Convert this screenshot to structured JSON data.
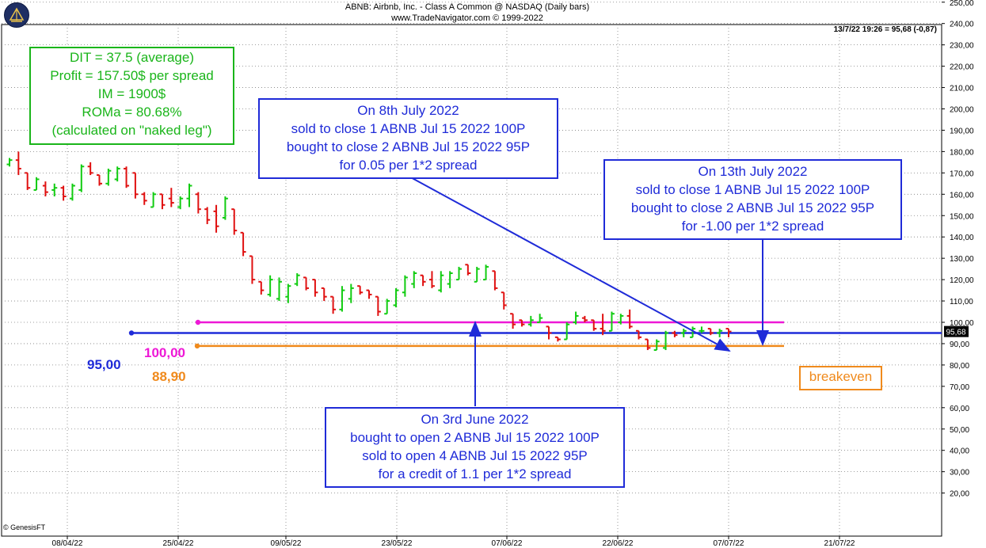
{
  "header": {
    "title": "ABNB:  Airbnb, Inc. - Class A Common @ NASDAQ  (Daily bars)",
    "subtitle": "www.TradeNavigator.com © 1999-2022"
  },
  "quote": "13/7/22 19:26 = 95,68 (-0,87)",
  "copyright": "© GenesisFT",
  "stats_box": [
    "DIT = 37.5 (average)",
    "Profit = 157.50$ per spread",
    "IM = 1900$",
    "ROMa = 80.68%",
    "(calculated on \"naked leg\")"
  ],
  "note_open": [
    "On 3rd June 2022",
    "bought to open 2 ABNB Jul 15 2022 100P",
    "sold to open 4 ABNB Jul 15 2022 95P",
    "for a credit of 1.1 per 1*2 spread"
  ],
  "note_close1": [
    "On 8th July 2022",
    "sold to close 1 ABNB Jul 15 2022 100P",
    "bought to close 2 ABNB Jul 15 2022 95P",
    "for 0.05 per 1*2 spread"
  ],
  "note_close2": [
    "On 13th July 2022",
    "sold to close 1 ABNB Jul 15 2022 100P",
    "bought to close 2 ABNB Jul 15 2022 95P",
    "for -1.00 per 1*2 spread"
  ],
  "levels": {
    "upper": {
      "label": "100,00",
      "value": 100,
      "color": "#ee18d6"
    },
    "strike": {
      "label": "95,00",
      "value": 95,
      "color": "#1f2bd8"
    },
    "breakeven": {
      "label": "88,90",
      "value": 88.9,
      "color": "#f08a1c"
    }
  },
  "breakeven_label": "breakeven",
  "colors": {
    "up": "#11cc11",
    "down": "#e01010",
    "grid": "#7f7f7f"
  },
  "chart_data": {
    "type": "ohlc",
    "title": "ABNB:  Airbnb, Inc. - Class A Common @ NASDAQ  (Daily bars)",
    "ylim": [
      17,
      252
    ],
    "y_ticks": [
      "20,00",
      "30,00",
      "40,00",
      "50,00",
      "60,00",
      "70,00",
      "80,00",
      "90,00",
      "100,00",
      "110,00",
      "120,00",
      "130,00",
      "140,00",
      "150,00",
      "160,00",
      "170,00",
      "180,00",
      "190,00",
      "200,00",
      "210,00",
      "220,00",
      "230,00",
      "240,00",
      "250,00"
    ],
    "x_ticks": [
      "08/04/22",
      "25/04/22",
      "09/05/22",
      "23/05/22",
      "07/06/22",
      "22/06/22",
      "07/07/22",
      "21/07/22"
    ],
    "last_price_label": "95,68",
    "bars": [
      {
        "o": 174,
        "h": 177,
        "l": 173,
        "c": 176
      },
      {
        "o": 176,
        "h": 180,
        "l": 169,
        "c": 172
      },
      {
        "o": 170,
        "h": 170,
        "l": 162,
        "c": 163
      },
      {
        "o": 162,
        "h": 168,
        "l": 162,
        "c": 167
      },
      {
        "o": 164,
        "h": 166,
        "l": 159,
        "c": 161
      },
      {
        "o": 162,
        "h": 165,
        "l": 159,
        "c": 163
      },
      {
        "o": 163,
        "h": 164,
        "l": 157,
        "c": 159
      },
      {
        "o": 158,
        "h": 165,
        "l": 157,
        "c": 164
      },
      {
        "o": 162,
        "h": 174,
        "l": 161,
        "c": 173
      },
      {
        "o": 173,
        "h": 175,
        "l": 169,
        "c": 170
      },
      {
        "o": 169,
        "h": 169,
        "l": 164,
        "c": 165
      },
      {
        "o": 165,
        "h": 172,
        "l": 164,
        "c": 171
      },
      {
        "o": 167,
        "h": 173,
        "l": 166,
        "c": 172
      },
      {
        "o": 172,
        "h": 173,
        "l": 163,
        "c": 164
      },
      {
        "o": 170,
        "h": 170,
        "l": 158,
        "c": 160
      },
      {
        "o": 160,
        "h": 161,
        "l": 155,
        "c": 157
      },
      {
        "o": 154,
        "h": 161,
        "l": 154,
        "c": 160
      },
      {
        "o": 160,
        "h": 160,
        "l": 153,
        "c": 155
      },
      {
        "o": 158,
        "h": 163,
        "l": 154,
        "c": 156
      },
      {
        "o": 154,
        "h": 159,
        "l": 153,
        "c": 158
      },
      {
        "o": 158,
        "h": 165,
        "l": 154,
        "c": 164
      },
      {
        "o": 160,
        "h": 161,
        "l": 151,
        "c": 153
      },
      {
        "o": 153,
        "h": 154,
        "l": 146,
        "c": 148
      },
      {
        "o": 152,
        "h": 155,
        "l": 142,
        "c": 145
      },
      {
        "o": 149,
        "h": 159,
        "l": 148,
        "c": 158
      },
      {
        "o": 153,
        "h": 153,
        "l": 141,
        "c": 143
      },
      {
        "o": 142,
        "h": 142,
        "l": 131,
        "c": 133
      },
      {
        "o": 131,
        "h": 131,
        "l": 118,
        "c": 120
      },
      {
        "o": 119,
        "h": 119,
        "l": 113,
        "c": 115
      },
      {
        "o": 113,
        "h": 122,
        "l": 112,
        "c": 120
      },
      {
        "o": 111,
        "h": 121,
        "l": 110,
        "c": 119
      },
      {
        "o": 112,
        "h": 118,
        "l": 109,
        "c": 117
      },
      {
        "o": 118,
        "h": 123,
        "l": 117,
        "c": 122
      },
      {
        "o": 121,
        "h": 121,
        "l": 115,
        "c": 116
      },
      {
        "o": 120,
        "h": 120,
        "l": 112,
        "c": 114
      },
      {
        "o": 116,
        "h": 116,
        "l": 110,
        "c": 112
      },
      {
        "o": 112,
        "h": 112,
        "l": 104,
        "c": 106
      },
      {
        "o": 106,
        "h": 117,
        "l": 105,
        "c": 115
      },
      {
        "o": 111,
        "h": 118,
        "l": 109,
        "c": 116
      },
      {
        "o": 117,
        "h": 117,
        "l": 113,
        "c": 114
      },
      {
        "o": 115,
        "h": 115,
        "l": 111,
        "c": 113
      },
      {
        "o": 112,
        "h": 112,
        "l": 103,
        "c": 105
      },
      {
        "o": 104,
        "h": 111,
        "l": 104,
        "c": 110
      },
      {
        "o": 108,
        "h": 116,
        "l": 107,
        "c": 115
      },
      {
        "o": 114,
        "h": 122,
        "l": 112,
        "c": 121
      },
      {
        "o": 118,
        "h": 124,
        "l": 116,
        "c": 123
      },
      {
        "o": 122,
        "h": 122,
        "l": 117,
        "c": 119
      },
      {
        "o": 120,
        "h": 124,
        "l": 116,
        "c": 117
      },
      {
        "o": 115,
        "h": 124,
        "l": 114,
        "c": 122
      },
      {
        "o": 118,
        "h": 124,
        "l": 116,
        "c": 123
      },
      {
        "o": 120,
        "h": 126,
        "l": 120,
        "c": 125
      },
      {
        "o": 127,
        "h": 127,
        "l": 122,
        "c": 123
      },
      {
        "o": 119,
        "h": 126,
        "l": 119,
        "c": 125
      },
      {
        "o": 120,
        "h": 127,
        "l": 120,
        "c": 126
      },
      {
        "o": 124,
        "h": 124,
        "l": 115,
        "c": 116
      },
      {
        "o": 114,
        "h": 114,
        "l": 106,
        "c": 108
      },
      {
        "o": 104,
        "h": 104,
        "l": 97,
        "c": 99
      },
      {
        "o": 101,
        "h": 101,
        "l": 98,
        "c": 99
      },
      {
        "o": 99,
        "h": 103,
        "l": 98,
        "c": 101
      },
      {
        "o": 100,
        "h": 104,
        "l": 100,
        "c": 102
      },
      {
        "o": 98,
        "h": 98,
        "l": 92,
        "c": 95
      },
      {
        "o": 93,
        "h": 93,
        "l": 91,
        "c": 92
      },
      {
        "o": 92,
        "h": 100,
        "l": 92,
        "c": 99
      },
      {
        "o": 100,
        "h": 105,
        "l": 99,
        "c": 103
      },
      {
        "o": 102,
        "h": 103,
        "l": 100,
        "c": 101
      },
      {
        "o": 101,
        "h": 101,
        "l": 96,
        "c": 97
      },
      {
        "o": 97,
        "h": 104,
        "l": 94,
        "c": 96
      },
      {
        "o": 96,
        "h": 105,
        "l": 96,
        "c": 104
      },
      {
        "o": 100,
        "h": 104,
        "l": 99,
        "c": 103
      },
      {
        "o": 103,
        "h": 106,
        "l": 97,
        "c": 98
      },
      {
        "o": 96,
        "h": 96,
        "l": 92,
        "c": 93
      },
      {
        "o": 92,
        "h": 92,
        "l": 87,
        "c": 88
      },
      {
        "o": 87,
        "h": 92,
        "l": 87,
        "c": 91
      },
      {
        "o": 88,
        "h": 96,
        "l": 87,
        "c": 95
      },
      {
        "o": 95,
        "h": 96,
        "l": 93,
        "c": 94
      },
      {
        "o": 95,
        "h": 97,
        "l": 93,
        "c": 96
      },
      {
        "o": 93,
        "h": 98,
        "l": 93,
        "c": 97
      },
      {
        "o": 96,
        "h": 98,
        "l": 95,
        "c": 96
      },
      {
        "o": 97,
        "h": 97,
        "l": 94,
        "c": 95
      },
      {
        "o": 95,
        "h": 97,
        "l": 93,
        "c": 96
      },
      {
        "o": 97,
        "h": 97,
        "l": 93,
        "c": 95.7
      }
    ]
  }
}
